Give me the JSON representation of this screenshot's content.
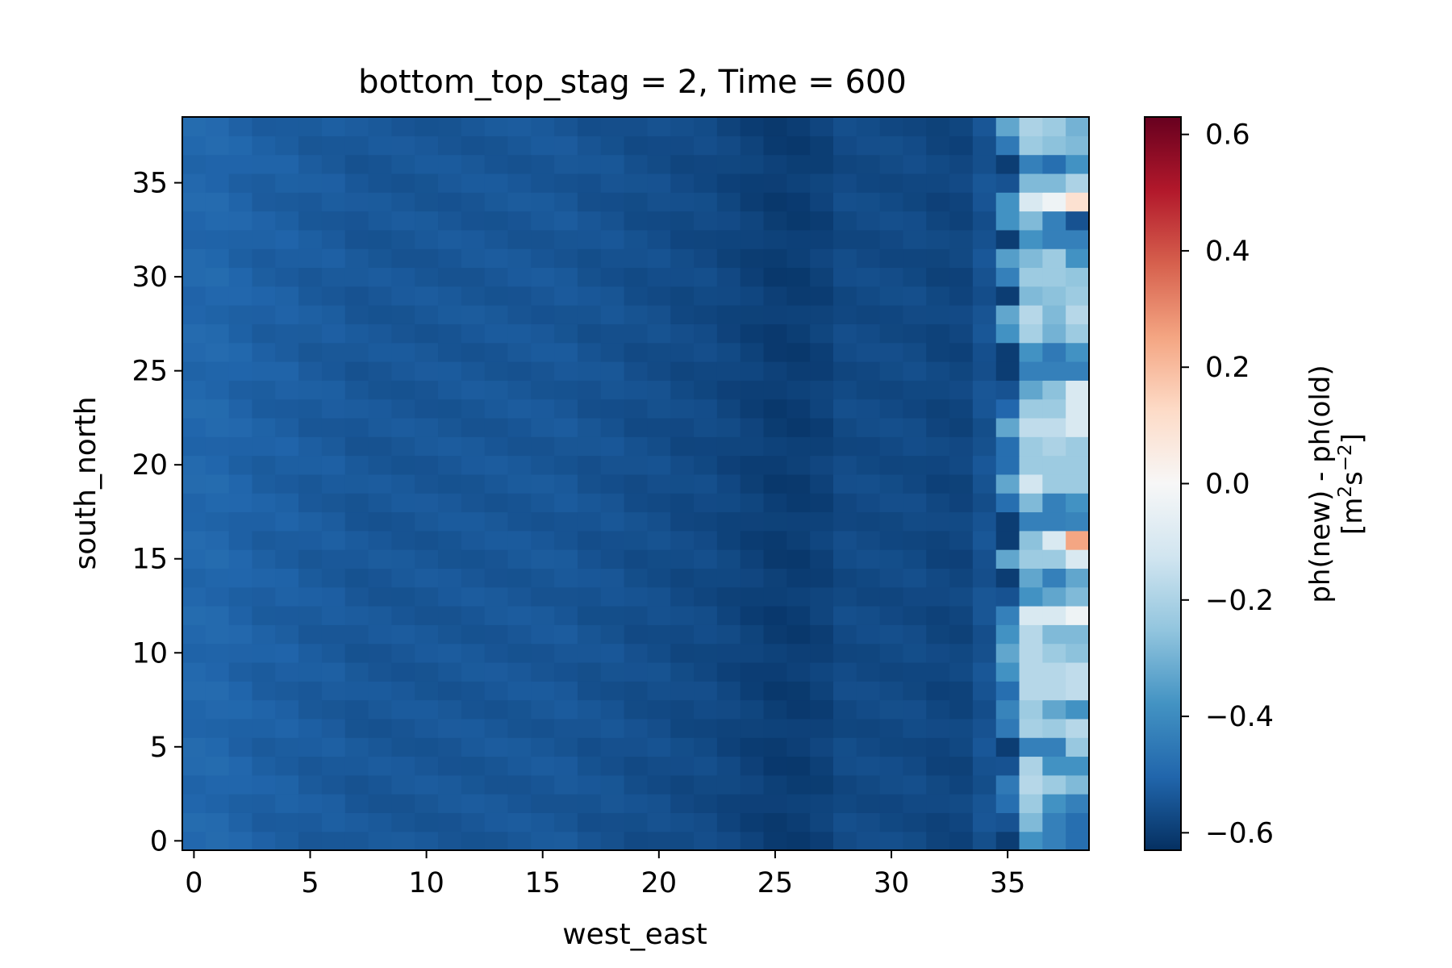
{
  "chart_data": {
    "type": "heatmap",
    "title": "bottom_top_stag = 2, Time = 600",
    "xlabel": "west_east",
    "ylabel": "south_north",
    "xlim": [
      -0.5,
      38.5
    ],
    "ylim": [
      -0.5,
      38.5
    ],
    "x_ticks": [
      0,
      5,
      10,
      15,
      20,
      25,
      30,
      35
    ],
    "y_ticks": [
      0,
      5,
      10,
      15,
      20,
      25,
      30,
      35
    ],
    "x_tick_labels": [
      "0",
      "5",
      "10",
      "15",
      "20",
      "25",
      "30",
      "35"
    ],
    "y_tick_labels": [
      "0",
      "5",
      "10",
      "15",
      "20",
      "25",
      "30",
      "35"
    ],
    "colormap": "RdBu_r",
    "vmin": -0.63,
    "vmax": 0.63,
    "colorbar": {
      "label_line1": "ph(new) - ph(old)",
      "label_line2_prefix": "[m",
      "label_line2_sup1": "2",
      "label_line2_mid": "s",
      "label_line2_sup2": "−2",
      "label_line2_suffix": "]",
      "ticks": [
        -0.6,
        -0.4,
        -0.2,
        0.0,
        0.2,
        0.4,
        0.6
      ],
      "tick_labels": [
        "−0.6",
        "−0.4",
        "−0.2",
        "0.0",
        "0.2",
        "0.4",
        "0.6"
      ]
    },
    "column_base_values": [
      -0.5,
      -0.5,
      -0.51,
      -0.52,
      -0.52,
      -0.53,
      -0.53,
      -0.54,
      -0.54,
      -0.54,
      -0.54,
      -0.54,
      -0.54,
      -0.54,
      -0.54,
      -0.54,
      -0.54,
      -0.55,
      -0.55,
      -0.56,
      -0.56,
      -0.57,
      -0.57,
      -0.58,
      -0.59,
      -0.6,
      -0.6,
      -0.59,
      -0.57,
      -0.57,
      -0.57,
      -0.57,
      -0.58,
      -0.58,
      -0.55
    ],
    "right_columns_x": [
      35,
      36,
      37,
      38
    ],
    "right_columns_values": [
      [
        -0.6,
        -0.38,
        -0.43,
        -0.48
      ],
      [
        -0.55,
        -0.28,
        -0.43,
        -0.48
      ],
      [
        -0.48,
        -0.23,
        -0.38,
        -0.43
      ],
      [
        -0.45,
        -0.18,
        -0.23,
        -0.28
      ],
      [
        -0.55,
        -0.2,
        -0.38,
        -0.38
      ],
      [
        -0.6,
        -0.43,
        -0.43,
        -0.24
      ],
      [
        -0.45,
        -0.21,
        -0.23,
        -0.18
      ],
      [
        -0.42,
        -0.23,
        -0.33,
        -0.38
      ],
      [
        -0.48,
        -0.18,
        -0.18,
        -0.16
      ],
      [
        -0.38,
        -0.18,
        -0.18,
        -0.16
      ],
      [
        -0.33,
        -0.18,
        -0.23,
        -0.26
      ],
      [
        -0.38,
        -0.18,
        -0.28,
        -0.28
      ],
      [
        -0.43,
        -0.1,
        -0.1,
        -0.03
      ],
      [
        -0.55,
        -0.38,
        -0.33,
        -0.28
      ],
      [
        -0.6,
        -0.33,
        -0.43,
        -0.33
      ],
      [
        -0.33,
        -0.23,
        -0.23,
        -0.1
      ],
      [
        -0.6,
        -0.26,
        -0.1,
        0.25
      ],
      [
        -0.6,
        -0.43,
        -0.43,
        -0.42
      ],
      [
        -0.48,
        -0.28,
        -0.43,
        -0.38
      ],
      [
        -0.33,
        -0.12,
        -0.23,
        -0.23
      ],
      [
        -0.48,
        -0.23,
        -0.23,
        -0.23
      ],
      [
        -0.48,
        -0.23,
        -0.2,
        -0.23
      ],
      [
        -0.33,
        -0.16,
        -0.16,
        -0.1
      ],
      [
        -0.5,
        -0.23,
        -0.23,
        -0.1
      ],
      [
        -0.55,
        -0.33,
        -0.26,
        -0.1
      ],
      [
        -0.6,
        -0.43,
        -0.43,
        -0.43
      ],
      [
        -0.6,
        -0.38,
        -0.45,
        -0.38
      ],
      [
        -0.38,
        -0.21,
        -0.3,
        -0.23
      ],
      [
        -0.33,
        -0.18,
        -0.28,
        -0.18
      ],
      [
        -0.6,
        -0.28,
        -0.26,
        -0.23
      ],
      [
        -0.43,
        -0.23,
        -0.23,
        -0.25
      ],
      [
        -0.35,
        -0.28,
        -0.23,
        -0.38
      ],
      [
        -0.6,
        -0.38,
        -0.43,
        -0.43
      ],
      [
        -0.38,
        -0.28,
        -0.43,
        -0.55
      ],
      [
        -0.38,
        -0.1,
        -0.03,
        0.1
      ],
      [
        -0.55,
        -0.28,
        -0.28,
        -0.2
      ],
      [
        -0.6,
        -0.43,
        -0.48,
        -0.38
      ],
      [
        -0.45,
        -0.23,
        -0.26,
        -0.28
      ],
      [
        -0.33,
        -0.2,
        -0.23,
        -0.3
      ]
    ]
  }
}
